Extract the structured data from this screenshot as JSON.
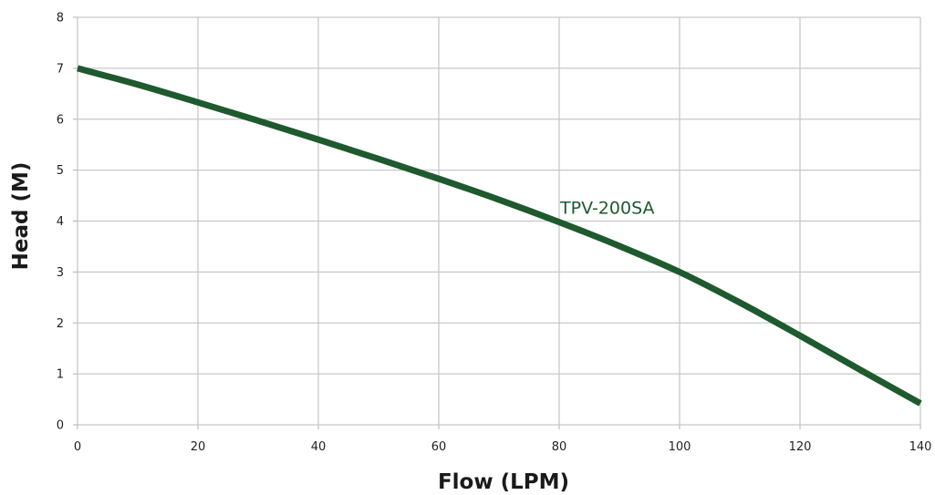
{
  "chart_data": {
    "type": "line",
    "title": "",
    "xlabel": "Flow (LPM)",
    "ylabel": "Head (M)",
    "xlim": [
      0,
      140
    ],
    "ylim": [
      0,
      8
    ],
    "x_ticks": [
      0,
      20,
      40,
      60,
      80,
      100,
      120,
      140
    ],
    "y_ticks": [
      0,
      1,
      2,
      3,
      4,
      5,
      6,
      7,
      8
    ],
    "grid": true,
    "legend": "none",
    "series": [
      {
        "name": "TPV-200SA",
        "color": "#1e5a2d",
        "x": [
          0,
          10,
          20,
          30,
          40,
          50,
          60,
          70,
          80,
          90,
          100,
          110,
          120,
          130,
          140
        ],
        "y": [
          7.0,
          6.68,
          6.33,
          5.97,
          5.6,
          5.22,
          4.83,
          4.42,
          3.98,
          3.51,
          3.0,
          2.4,
          1.75,
          1.08,
          0.42
        ]
      }
    ],
    "annotations": [
      {
        "text": "TPV-200SA",
        "x": 80,
        "y": 4.0,
        "anchor": "right-of-point",
        "color": "#1e5a2d"
      }
    ]
  }
}
